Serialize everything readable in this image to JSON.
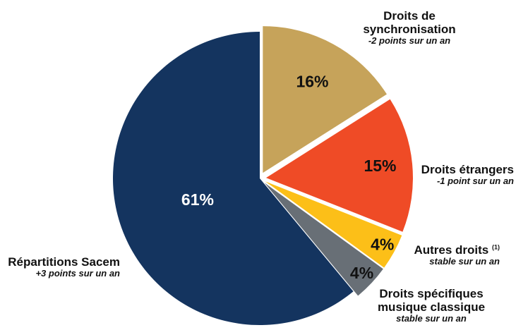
{
  "chart_data": {
    "type": "pie",
    "values": [
      61,
      16,
      15,
      4,
      4
    ],
    "series": [
      {
        "name": "Répartitions Sacem",
        "value": 61,
        "pct_label": "61%",
        "note": "+3 points sur un an",
        "color": "#14345f",
        "exploded": false
      },
      {
        "name": "Droits de synchronisation",
        "name_lines": [
          "Droits de",
          "synchronisation"
        ],
        "value": 16,
        "pct_label": "16%",
        "note": "-2 points sur un an",
        "color": "#c6a35a",
        "exploded": true
      },
      {
        "name": "Droits étrangers",
        "value": 15,
        "pct_label": "15%",
        "note": "-1 point sur un an",
        "color": "#ef4b26",
        "exploded": true
      },
      {
        "name": "Autres droits",
        "footnote": "(1)",
        "value": 4,
        "pct_label": "4%",
        "note": "stable sur un an",
        "color": "#fcbf18",
        "exploded": true
      },
      {
        "name": "Droits spécifiques musique classique",
        "name_lines": [
          "Droits spécifiques",
          "musique classique"
        ],
        "value": 4,
        "pct_label": "4%",
        "note": "stable sur un an",
        "color": "#686f76",
        "exploded": true
      }
    ]
  }
}
